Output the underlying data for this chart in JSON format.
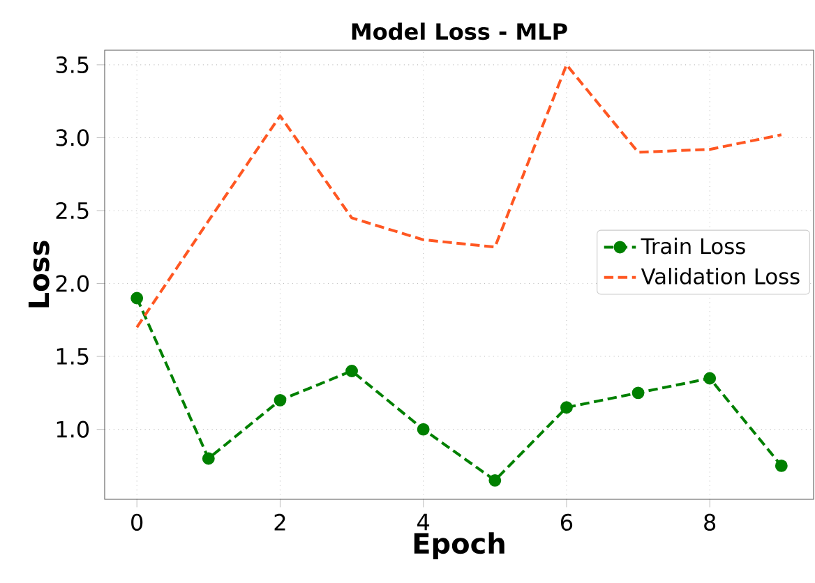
{
  "chart_data": {
    "type": "line",
    "title": "Model Loss - MLP",
    "xlabel": "Epoch",
    "ylabel": "Loss",
    "x": [
      0,
      1,
      2,
      3,
      4,
      5,
      6,
      7,
      8,
      9
    ],
    "series": [
      {
        "name": "Train Loss",
        "color": "#008000",
        "marker": "circle",
        "line_style": "dashed",
        "values": [
          1.9,
          0.8,
          1.2,
          1.4,
          1.0,
          0.65,
          1.15,
          1.25,
          1.35,
          0.75
        ]
      },
      {
        "name": "Validation Loss",
        "color": "#ff5722",
        "marker": "none",
        "line_style": "dashed",
        "values": [
          1.7,
          2.43,
          3.15,
          2.45,
          2.3,
          2.25,
          3.5,
          2.9,
          2.92,
          3.02
        ]
      }
    ],
    "xlim": [
      -0.45,
      9.45
    ],
    "ylim": [
      0.52,
      3.6
    ],
    "xticks": [
      0,
      2,
      4,
      6,
      8
    ],
    "yticks": [
      {
        "value": 1.0,
        "label": "1.0"
      },
      {
        "value": 1.5,
        "label": "1.5"
      },
      {
        "value": 2.0,
        "label": "2.0"
      },
      {
        "value": 2.5,
        "label": "2.5"
      },
      {
        "value": 3.0,
        "label": "3.0"
      },
      {
        "value": 3.5,
        "label": "3.5"
      }
    ],
    "grid": true,
    "legend": "right"
  }
}
